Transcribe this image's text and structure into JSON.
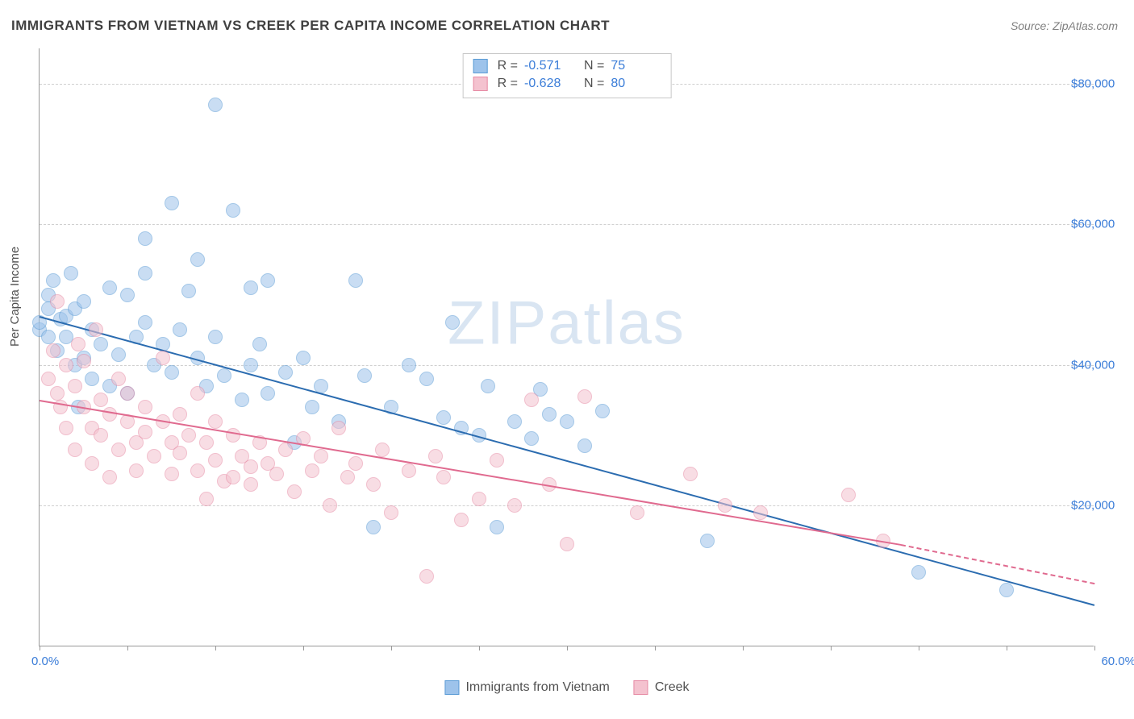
{
  "title": "IMMIGRANTS FROM VIETNAM VS CREEK PER CAPITA INCOME CORRELATION CHART",
  "source": "Source: ZipAtlas.com",
  "watermark_a": "ZIP",
  "watermark_b": "atlas",
  "y_axis_title": "Per Capita Income",
  "chart": {
    "type": "scatter",
    "xlim": [
      0,
      60
    ],
    "ylim": [
      0,
      85000
    ],
    "x_tick_step": 5,
    "y_ticks": [
      20000,
      40000,
      60000,
      80000
    ],
    "y_tick_labels": [
      "$20,000",
      "$40,000",
      "$60,000",
      "$80,000"
    ],
    "x_min_label": "0.0%",
    "x_max_label": "60.0%",
    "background_color": "#ffffff",
    "grid_color": "#d0d0d0",
    "marker_radius": 9,
    "marker_opacity": 0.55,
    "series": [
      {
        "name": "Immigrants from Vietnam",
        "fill": "#9dc3eb",
        "stroke": "#5a9bd5",
        "trend_color": "#2b6cb0",
        "r_label": "R =",
        "r_value": "-0.571",
        "n_label": "N =",
        "n_value": "75",
        "trend": {
          "x1": 0,
          "y1": 47000,
          "x2": 60,
          "y2": 6000
        },
        "points": [
          [
            0,
            45000
          ],
          [
            0,
            46000
          ],
          [
            0.5,
            44000
          ],
          [
            0.5,
            48000
          ],
          [
            0.5,
            50000
          ],
          [
            0.8,
            52000
          ],
          [
            1,
            42000
          ],
          [
            1.2,
            46500
          ],
          [
            1.5,
            47000
          ],
          [
            1.5,
            44000
          ],
          [
            1.8,
            53000
          ],
          [
            2,
            40000
          ],
          [
            2,
            48000
          ],
          [
            2.2,
            34000
          ],
          [
            2.5,
            41000
          ],
          [
            2.5,
            49000
          ],
          [
            3,
            45000
          ],
          [
            3,
            38000
          ],
          [
            3.5,
            43000
          ],
          [
            4,
            51000
          ],
          [
            4,
            37000
          ],
          [
            4.5,
            41500
          ],
          [
            5,
            50000
          ],
          [
            5,
            36000
          ],
          [
            5.5,
            44000
          ],
          [
            6,
            46000
          ],
          [
            6,
            53000
          ],
          [
            6,
            58000
          ],
          [
            6.5,
            40000
          ],
          [
            7,
            43000
          ],
          [
            7.5,
            63000
          ],
          [
            7.5,
            39000
          ],
          [
            8,
            45000
          ],
          [
            8.5,
            50500
          ],
          [
            9,
            41000
          ],
          [
            9,
            55000
          ],
          [
            9.5,
            37000
          ],
          [
            10,
            77000
          ],
          [
            10,
            44000
          ],
          [
            10.5,
            38500
          ],
          [
            11,
            62000
          ],
          [
            11.5,
            35000
          ],
          [
            12,
            51000
          ],
          [
            12,
            40000
          ],
          [
            12.5,
            43000
          ],
          [
            13,
            36000
          ],
          [
            13,
            52000
          ],
          [
            14,
            39000
          ],
          [
            14.5,
            29000
          ],
          [
            15,
            41000
          ],
          [
            15.5,
            34000
          ],
          [
            16,
            37000
          ],
          [
            17,
            32000
          ],
          [
            18,
            52000
          ],
          [
            18.5,
            38500
          ],
          [
            19,
            17000
          ],
          [
            20,
            34000
          ],
          [
            21,
            40000
          ],
          [
            22,
            38000
          ],
          [
            23,
            32500
          ],
          [
            23.5,
            46000
          ],
          [
            24,
            31000
          ],
          [
            25,
            30000
          ],
          [
            25.5,
            37000
          ],
          [
            26,
            17000
          ],
          [
            27,
            32000
          ],
          [
            28,
            29500
          ],
          [
            28.5,
            36500
          ],
          [
            29,
            33000
          ],
          [
            30,
            32000
          ],
          [
            31,
            28500
          ],
          [
            32,
            33500
          ],
          [
            38,
            15000
          ],
          [
            50,
            10500
          ],
          [
            55,
            8000
          ]
        ]
      },
      {
        "name": "Creek",
        "fill": "#f4c2cf",
        "stroke": "#e68aa4",
        "trend_color": "#e06a8f",
        "r_label": "R =",
        "r_value": "-0.628",
        "n_label": "N =",
        "n_value": "80",
        "trend": {
          "x1": 0,
          "y1": 35000,
          "x2": 49,
          "y2": 14500
        },
        "trend_dashed_ext": {
          "x1": 49,
          "y1": 14500,
          "x2": 60,
          "y2": 9000
        },
        "points": [
          [
            0.5,
            38000
          ],
          [
            0.8,
            42000
          ],
          [
            1,
            36000
          ],
          [
            1,
            49000
          ],
          [
            1.2,
            34000
          ],
          [
            1.5,
            40000
          ],
          [
            1.5,
            31000
          ],
          [
            2,
            37000
          ],
          [
            2,
            28000
          ],
          [
            2.2,
            43000
          ],
          [
            2.5,
            34000
          ],
          [
            2.5,
            40500
          ],
          [
            3,
            31000
          ],
          [
            3,
            26000
          ],
          [
            3.2,
            45000
          ],
          [
            3.5,
            35000
          ],
          [
            3.5,
            30000
          ],
          [
            4,
            33000
          ],
          [
            4,
            24000
          ],
          [
            4.5,
            38000
          ],
          [
            4.5,
            28000
          ],
          [
            5,
            32000
          ],
          [
            5,
            36000
          ],
          [
            5.5,
            29000
          ],
          [
            5.5,
            25000
          ],
          [
            6,
            34000
          ],
          [
            6,
            30500
          ],
          [
            6.5,
            27000
          ],
          [
            7,
            41000
          ],
          [
            7,
            32000
          ],
          [
            7.5,
            29000
          ],
          [
            7.5,
            24500
          ],
          [
            8,
            33000
          ],
          [
            8,
            27500
          ],
          [
            8.5,
            30000
          ],
          [
            9,
            25000
          ],
          [
            9,
            36000
          ],
          [
            9.5,
            29000
          ],
          [
            9.5,
            21000
          ],
          [
            10,
            32000
          ],
          [
            10,
            26500
          ],
          [
            10.5,
            23500
          ],
          [
            11,
            30000
          ],
          [
            11,
            24000
          ],
          [
            11.5,
            27000
          ],
          [
            12,
            25500
          ],
          [
            12,
            23000
          ],
          [
            12.5,
            29000
          ],
          [
            13,
            26000
          ],
          [
            13.5,
            24500
          ],
          [
            14,
            28000
          ],
          [
            14.5,
            22000
          ],
          [
            15,
            29500
          ],
          [
            15.5,
            25000
          ],
          [
            16,
            27000
          ],
          [
            16.5,
            20000
          ],
          [
            17,
            31000
          ],
          [
            17.5,
            24000
          ],
          [
            18,
            26000
          ],
          [
            19,
            23000
          ],
          [
            19.5,
            28000
          ],
          [
            20,
            19000
          ],
          [
            21,
            25000
          ],
          [
            22,
            10000
          ],
          [
            22.5,
            27000
          ],
          [
            23,
            24000
          ],
          [
            24,
            18000
          ],
          [
            25,
            21000
          ],
          [
            26,
            26500
          ],
          [
            27,
            20000
          ],
          [
            28,
            35000
          ],
          [
            29,
            23000
          ],
          [
            30,
            14500
          ],
          [
            31,
            35500
          ],
          [
            34,
            19000
          ],
          [
            37,
            24500
          ],
          [
            39,
            20000
          ],
          [
            41,
            19000
          ],
          [
            46,
            21500
          ],
          [
            48,
            15000
          ]
        ]
      }
    ]
  },
  "bottom_legend": [
    {
      "label": "Immigrants from Vietnam",
      "fill": "#9dc3eb",
      "stroke": "#5a9bd5"
    },
    {
      "label": "Creek",
      "fill": "#f4c2cf",
      "stroke": "#e68aa4"
    }
  ]
}
